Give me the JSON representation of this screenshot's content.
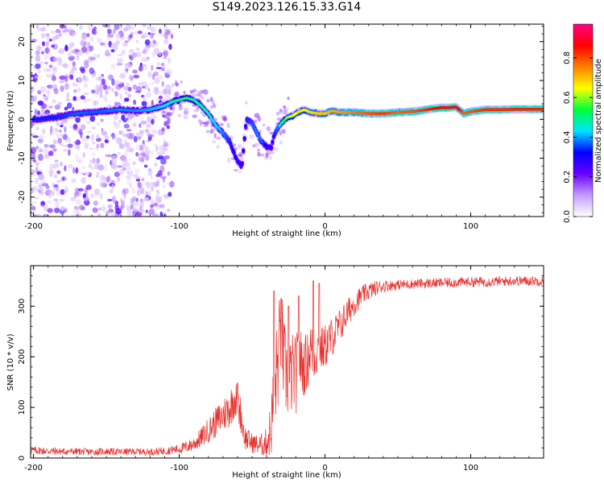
{
  "title": "S149.2023.126.15.33.G14",
  "colors": {
    "snr_line": "#e8302c",
    "colormap": [
      "#ffffff",
      "#c49bff",
      "#6a00ff",
      "#0000ff",
      "#00e5ff",
      "#00ff3a",
      "#ffff00",
      "#ff7f00",
      "#ff0000",
      "#ff0080"
    ]
  },
  "chart_data": [
    {
      "type": "heatmap",
      "title": "S149.2023.126.15.33.G14",
      "xlabel": "Height of straight line (km)",
      "ylabel": "Frequency (Hz)",
      "xlim": [
        -202,
        150
      ],
      "ylim": [
        -25,
        24.5
      ],
      "xticks": [
        -200,
        -100,
        0,
        100
      ],
      "yticks": [
        -20,
        -10,
        0,
        10,
        20
      ],
      "colorbar": {
        "label": "Normalized spectral amplitude",
        "range": [
          0,
          0.97
        ],
        "ticks": [
          0.0,
          0.2,
          0.4,
          0.6,
          0.8
        ],
        "colormap": "gist_ncar-like (white-purple-blue-cyan-green-yellow-orange-red-magenta)"
      },
      "ridge": {
        "description": "frequency of peak spectral amplitude vs height",
        "x": [
          -200,
          -185,
          -170,
          -155,
          -140,
          -130,
          -120,
          -110,
          -105,
          -100,
          -95,
          -90,
          -85,
          -80,
          -75,
          -70,
          -65,
          -60,
          -57,
          -54,
          -50,
          -46,
          -43,
          -40,
          -37,
          -35,
          -32,
          -30,
          -26,
          -22,
          -18,
          -14,
          -10,
          -5,
          0,
          5,
          10,
          20,
          30,
          40,
          50,
          60,
          70,
          75,
          80,
          85,
          90,
          95,
          100,
          110,
          120,
          130,
          140,
          150
        ],
        "y": [
          0,
          0.5,
          1.5,
          2,
          2.5,
          2.2,
          2.5,
          3.5,
          4.5,
          5,
          5.5,
          5,
          3.5,
          1.5,
          -1.5,
          -3.5,
          -6,
          -11,
          -12,
          0,
          -1,
          -4,
          -6,
          -7,
          -7.5,
          -4,
          -2,
          -1,
          0.5,
          1,
          2,
          2.5,
          1.8,
          1.5,
          1.5,
          2.2,
          1.8,
          1.8,
          1.5,
          1.5,
          1.8,
          2,
          2.5,
          2.8,
          3,
          3,
          3.2,
          1.5,
          2,
          2.5,
          2.5,
          2.6,
          2.6,
          2.6
        ],
        "amplitude": [
          0.35,
          0.35,
          0.38,
          0.38,
          0.4,
          0.4,
          0.42,
          0.45,
          0.5,
          0.52,
          0.55,
          0.5,
          0.5,
          0.48,
          0.45,
          0.4,
          0.35,
          0.3,
          0.28,
          0.35,
          0.38,
          0.4,
          0.38,
          0.3,
          0.28,
          0.35,
          0.4,
          0.5,
          0.6,
          0.65,
          0.7,
          0.68,
          0.7,
          0.72,
          0.72,
          0.74,
          0.75,
          0.78,
          0.82,
          0.84,
          0.8,
          0.82,
          0.85,
          0.88,
          0.9,
          0.92,
          0.95,
          0.8,
          0.82,
          0.85,
          0.85,
          0.86,
          0.86,
          0.86
        ]
      },
      "noise_region": {
        "x_range": [
          -202,
          -105
        ],
        "description": "scattered low-amplitude speckle across all frequencies"
      }
    },
    {
      "type": "line",
      "xlabel": "Height of straight line (km)",
      "ylabel": "SNR (10 * v/v)",
      "xlim": [
        -202,
        150
      ],
      "ylim": [
        0,
        380
      ],
      "xticks": [
        -200,
        -100,
        0,
        100
      ],
      "yticks": [
        0,
        100,
        200,
        300
      ],
      "grid": false,
      "x": [
        -200,
        -190,
        -180,
        -170,
        -160,
        -150,
        -140,
        -130,
        -120,
        -110,
        -100,
        -95,
        -90,
        -85,
        -80,
        -75,
        -70,
        -65,
        -62,
        -58,
        -55,
        -50,
        -45,
        -40,
        -37,
        -35,
        -32,
        -30,
        -28,
        -25,
        -22,
        -20,
        -18,
        -15,
        -12,
        -10,
        -8,
        -5,
        -2,
        0,
        5,
        10,
        15,
        20,
        25,
        30,
        35,
        40,
        50,
        60,
        70,
        80,
        90,
        100,
        110,
        120,
        130,
        140,
        150
      ],
      "y": [
        15,
        14,
        13,
        13,
        12,
        13,
        12,
        13,
        12,
        14,
        18,
        22,
        28,
        40,
        55,
        70,
        85,
        100,
        120,
        90,
        40,
        30,
        25,
        30,
        60,
        120,
        200,
        250,
        180,
        150,
        170,
        160,
        200,
        180,
        190,
        220,
        200,
        215,
        215,
        220,
        240,
        260,
        285,
        305,
        320,
        330,
        335,
        340,
        342,
        344,
        345,
        346,
        347,
        348,
        348,
        349,
        350,
        350,
        350
      ],
      "noise_amplitude": [
        8,
        8,
        7,
        7,
        7,
        7,
        7,
        7,
        7,
        8,
        10,
        12,
        15,
        20,
        25,
        30,
        35,
        40,
        40,
        35,
        25,
        20,
        20,
        30,
        60,
        90,
        100,
        100,
        90,
        80,
        80,
        80,
        70,
        60,
        60,
        55,
        55,
        50,
        45,
        45,
        40,
        35,
        30,
        25,
        20,
        18,
        15,
        12,
        10,
        10,
        10,
        10,
        10,
        10,
        10,
        10,
        10,
        10,
        10
      ],
      "spikes": [
        {
          "x": -60,
          "y": 148
        },
        {
          "x": -35,
          "y": 330
        },
        {
          "x": -30,
          "y": 315
        },
        {
          "x": -25,
          "y": 300
        },
        {
          "x": -18,
          "y": 320
        },
        {
          "x": -8,
          "y": 350
        },
        {
          "x": -4,
          "y": 345
        }
      ]
    }
  ]
}
